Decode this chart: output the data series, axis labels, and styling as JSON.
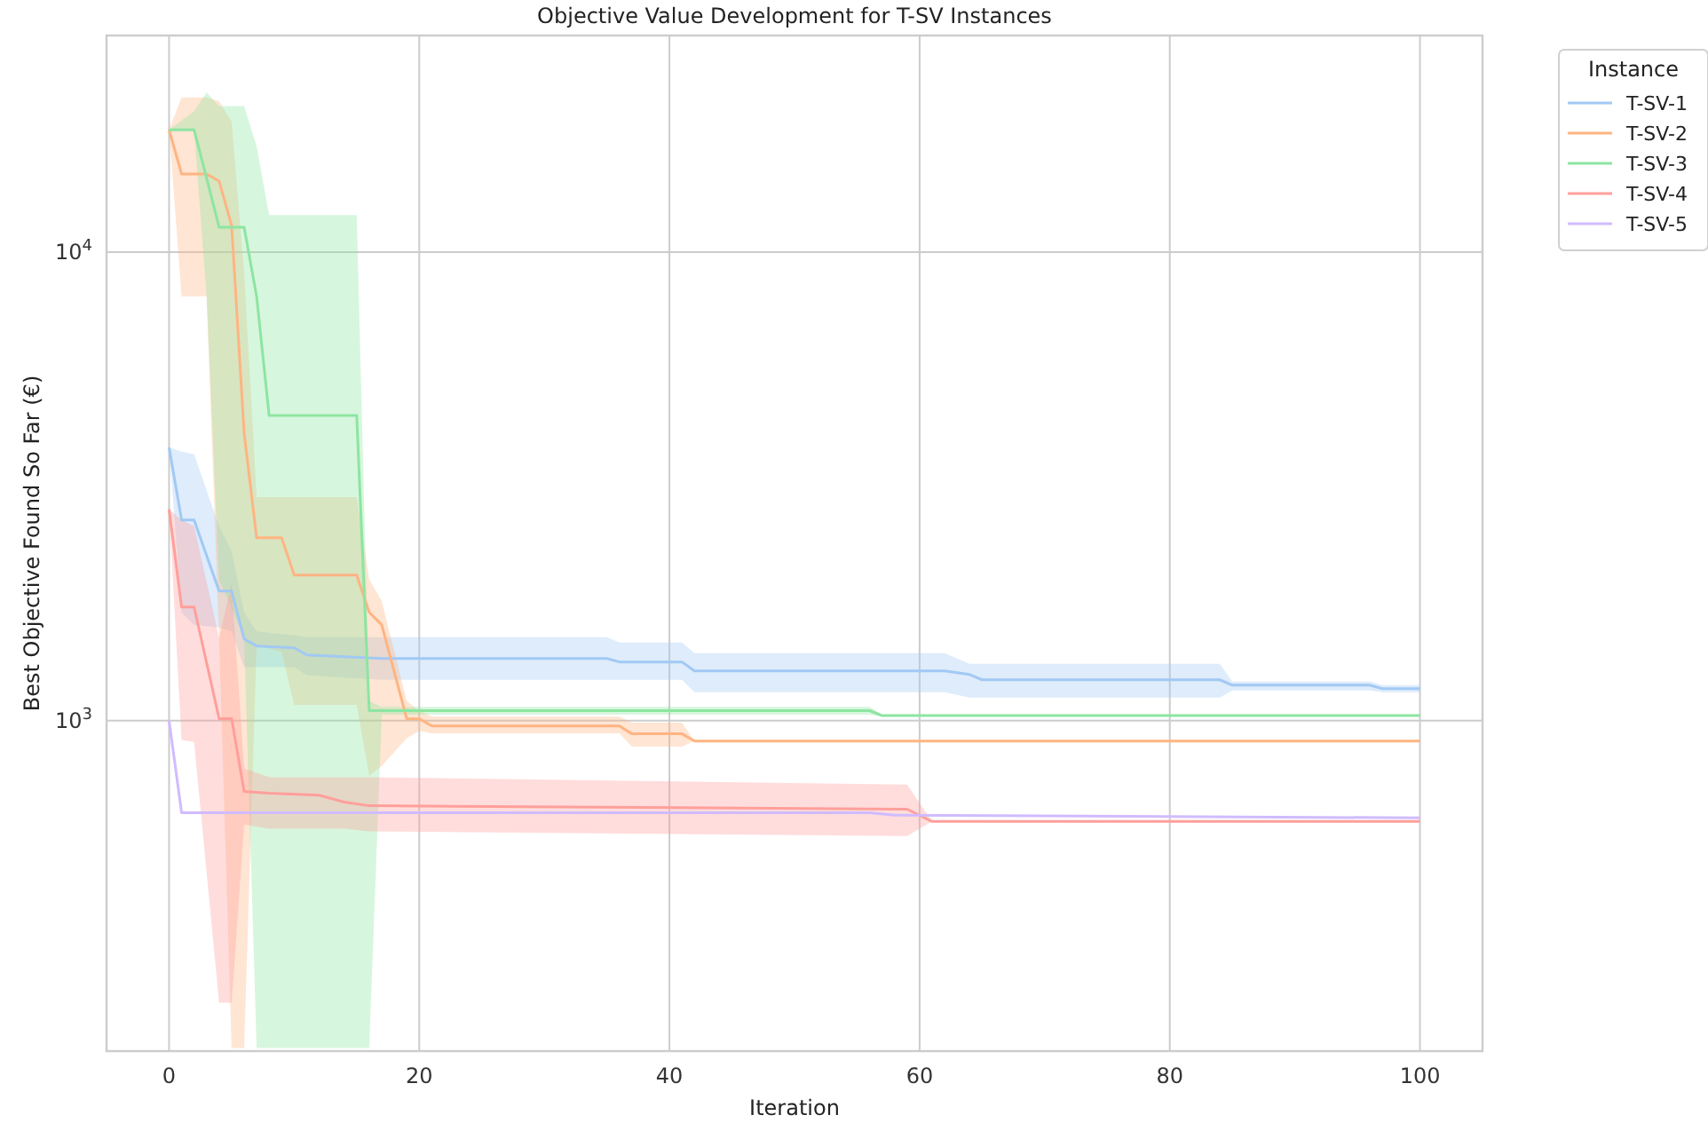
{
  "chart_data": {
    "type": "line",
    "title": "Objective Value Development for T-SV Instances",
    "xlabel": "Iteration",
    "ylabel": "Best Objective Found So Far (€)",
    "legend_title": "Instance",
    "legend": "top right",
    "grid": true,
    "log": "y",
    "xlim": [
      -5,
      105
    ],
    "xticks": [
      0,
      20,
      40,
      60,
      80,
      100
    ],
    "ylim": [
      197,
      29000
    ],
    "yticks": [
      {
        "value": 1000,
        "label": "10$^{3}$"
      },
      {
        "value": 10000,
        "label": "10$^{4}$"
      }
    ],
    "series": [
      {
        "name": "T-SV-1",
        "color": "#a1c9f4",
        "x": [
          0,
          1,
          2,
          4,
          5,
          6,
          7,
          10,
          11,
          17,
          35,
          36,
          41,
          42,
          62,
          64,
          65,
          84,
          85,
          96,
          97,
          100
        ],
        "values": [
          3830,
          2680,
          2680,
          1890,
          1890,
          1494,
          1443,
          1430,
          1381,
          1357,
          1357,
          1334,
          1334,
          1277,
          1277,
          1254,
          1222,
          1222,
          1190,
          1190,
          1170,
          1170
        ],
        "upper": [
          3830,
          3750,
          3700,
          2600,
          2300,
          1700,
          1550,
          1520,
          1506,
          1506,
          1506,
          1468,
          1468,
          1393,
          1393,
          1322,
          1322,
          1322,
          1211,
          1211,
          1190,
          1190
        ],
        "lower": [
          3830,
          1700,
          1600,
          1580,
          1550,
          1300,
          1300,
          1300,
          1250,
          1222,
          1222,
          1222,
          1222,
          1150,
          1150,
          1120,
          1120,
          1120,
          1160,
          1160,
          1150,
          1150
        ]
      },
      {
        "name": "T-SV-2",
        "color": "#ffb482",
        "x": [
          0,
          1,
          3,
          4,
          5,
          6,
          7,
          9,
          10,
          15,
          16,
          17,
          19,
          20,
          21,
          36,
          37,
          41,
          42,
          100
        ],
        "values": [
          18240,
          14680,
          14680,
          14180,
          11400,
          4110,
          2455,
          2455,
          2045,
          2045,
          1703,
          1601,
          1009,
          1009,
          974,
          974,
          937,
          937,
          904,
          904
        ],
        "upper": [
          18240,
          21400,
          21400,
          21000,
          19000,
          9000,
          3000,
          3000,
          3000,
          3000,
          2000,
          1800,
          1100,
          1050,
          1020,
          1020,
          990,
          990,
          904,
          904
        ],
        "lower": [
          18240,
          8050,
          8050,
          1500,
          200,
          200,
          1450,
          1400,
          1080,
          1080,
          763,
          800,
          917,
          950,
          940,
          940,
          880,
          880,
          904,
          904
        ]
      },
      {
        "name": "T-SV-3",
        "color": "#8de5a1",
        "x": [
          0,
          2,
          3,
          4,
          6,
          7,
          8,
          15,
          16,
          17,
          56,
          57,
          100
        ],
        "values": [
          18240,
          18240,
          14400,
          11300,
          11300,
          8040,
          4480,
          4480,
          1050,
          1050,
          1050,
          1025,
          1025
        ],
        "upper": [
          18240,
          20000,
          21900,
          20500,
          20500,
          16800,
          12000,
          12000,
          1100,
          1070,
          1070,
          1030,
          1025
        ],
        "lower": [
          18240,
          18240,
          8050,
          2000,
          1500,
          200,
          200,
          200,
          200,
          1030,
          1030,
          1020,
          1025
        ]
      },
      {
        "name": "T-SV-4",
        "color": "#ff9f9b",
        "x": [
          0,
          1,
          2,
          4,
          5,
          6,
          8,
          12,
          14,
          16,
          59,
          61,
          100
        ],
        "values": [
          2825,
          1748,
          1748,
          1010,
          1010,
          706,
          700,
          693,
          670,
          658,
          647,
          609,
          609
        ],
        "upper": [
          2825,
          2680,
          2600,
          1500,
          1960,
          790,
          757,
          757,
          757,
          757,
          730,
          609,
          609
        ],
        "lower": [
          2825,
          909,
          900,
          250,
          250,
          600,
          588,
          588,
          588,
          580,
          567,
          609,
          609
        ]
      },
      {
        "name": "T-SV-5",
        "color": "#d0bbff",
        "x": [
          0,
          1,
          56,
          58,
          100
        ],
        "values": [
          1000,
          636,
          636,
          628,
          620
        ]
      }
    ]
  }
}
